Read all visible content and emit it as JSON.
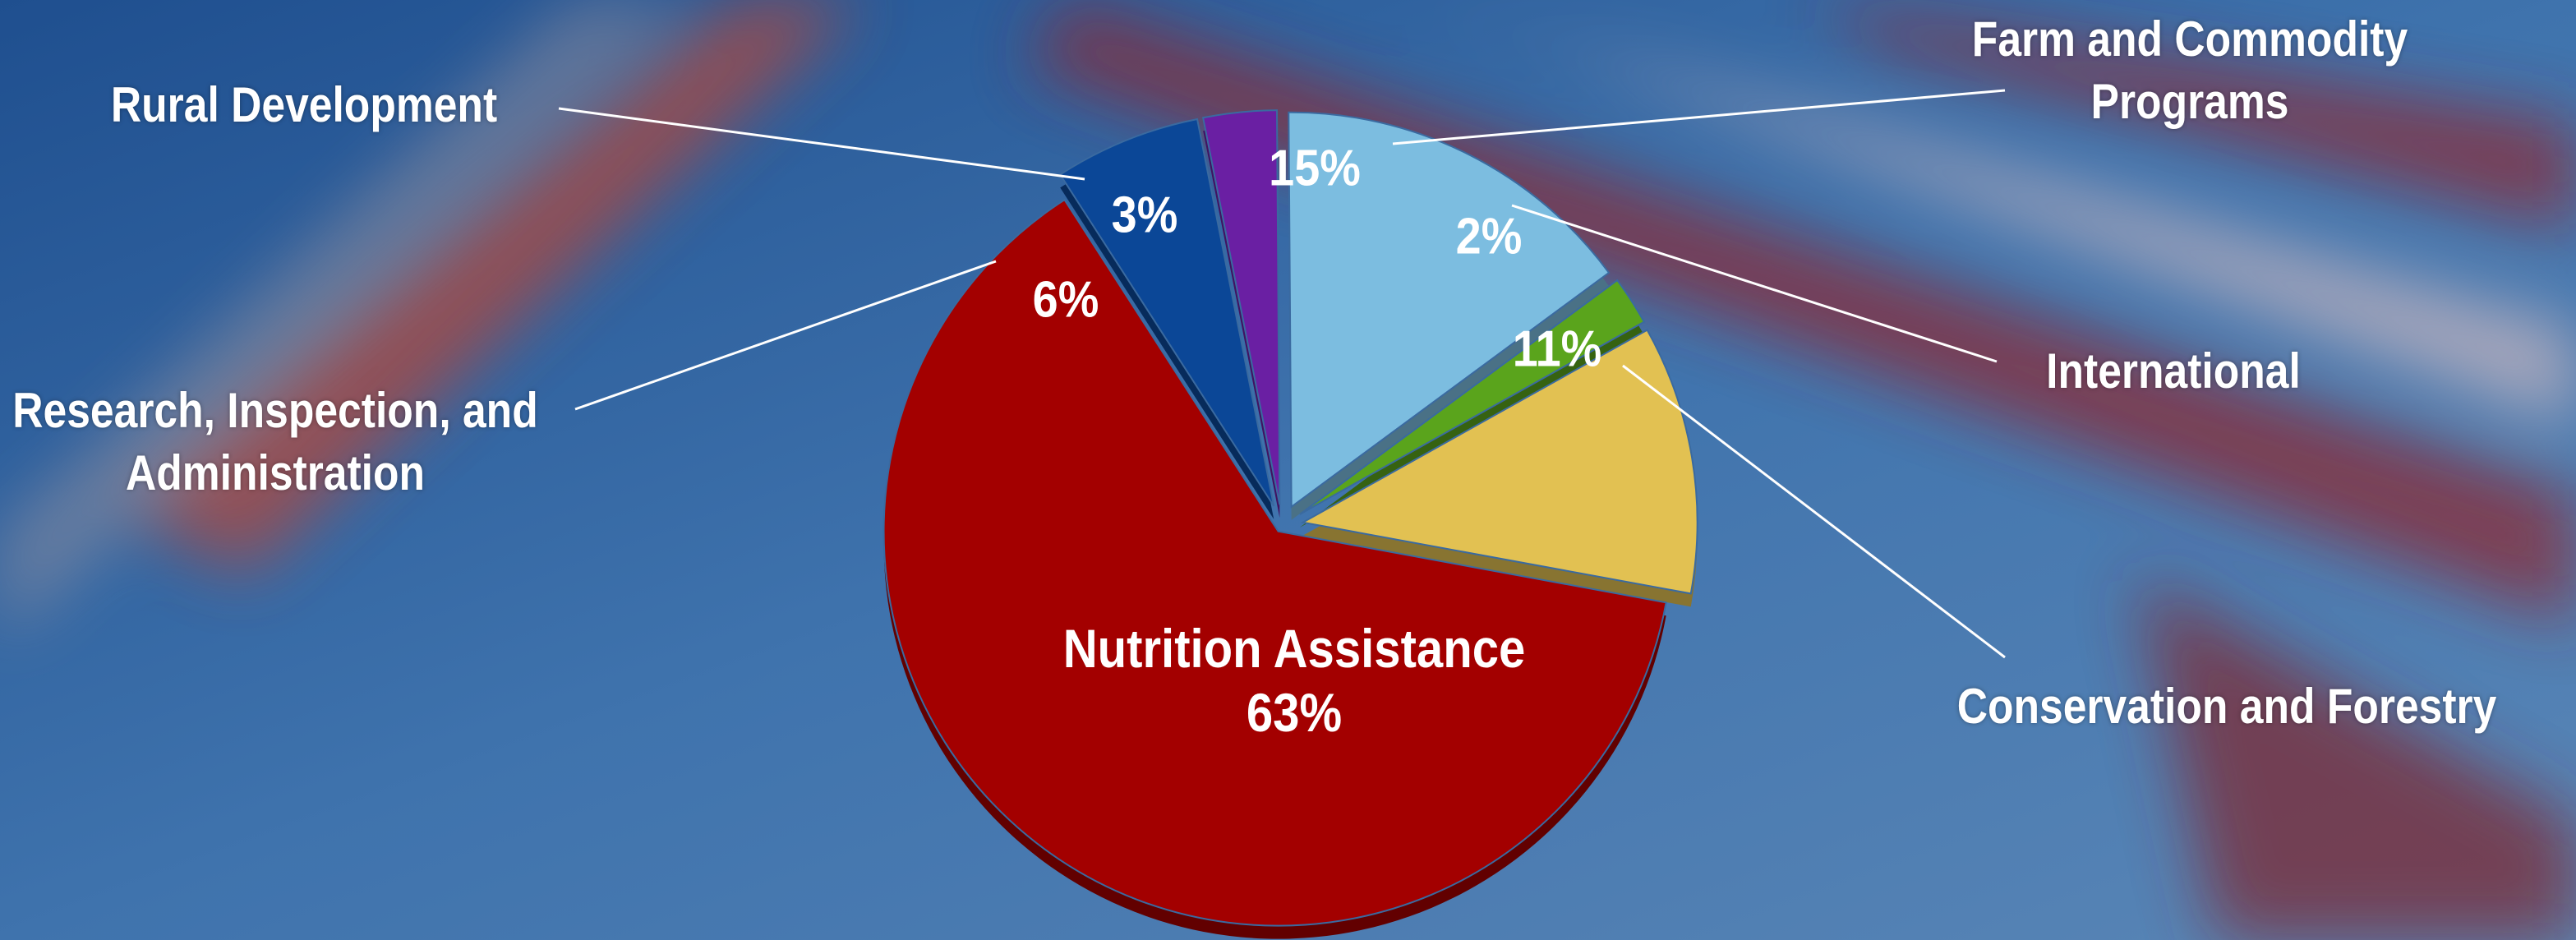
{
  "chart_data": {
    "type": "pie",
    "categories": [
      "Nutrition Assistance",
      "Research, Inspection, and Administration",
      "Rural Development",
      "Farm and Commodity Programs",
      "International",
      "Conservation and Forestry"
    ],
    "values": [
      63,
      6,
      3,
      15,
      2,
      11
    ],
    "value_labels": [
      "63%",
      "6%",
      "3%",
      "15%",
      "2%",
      "11%"
    ],
    "colors": [
      "#a30000",
      "#0b4797",
      "#6a1fa3",
      "#7cbde0",
      "#5aa41c",
      "#e2c152"
    ]
  }
}
